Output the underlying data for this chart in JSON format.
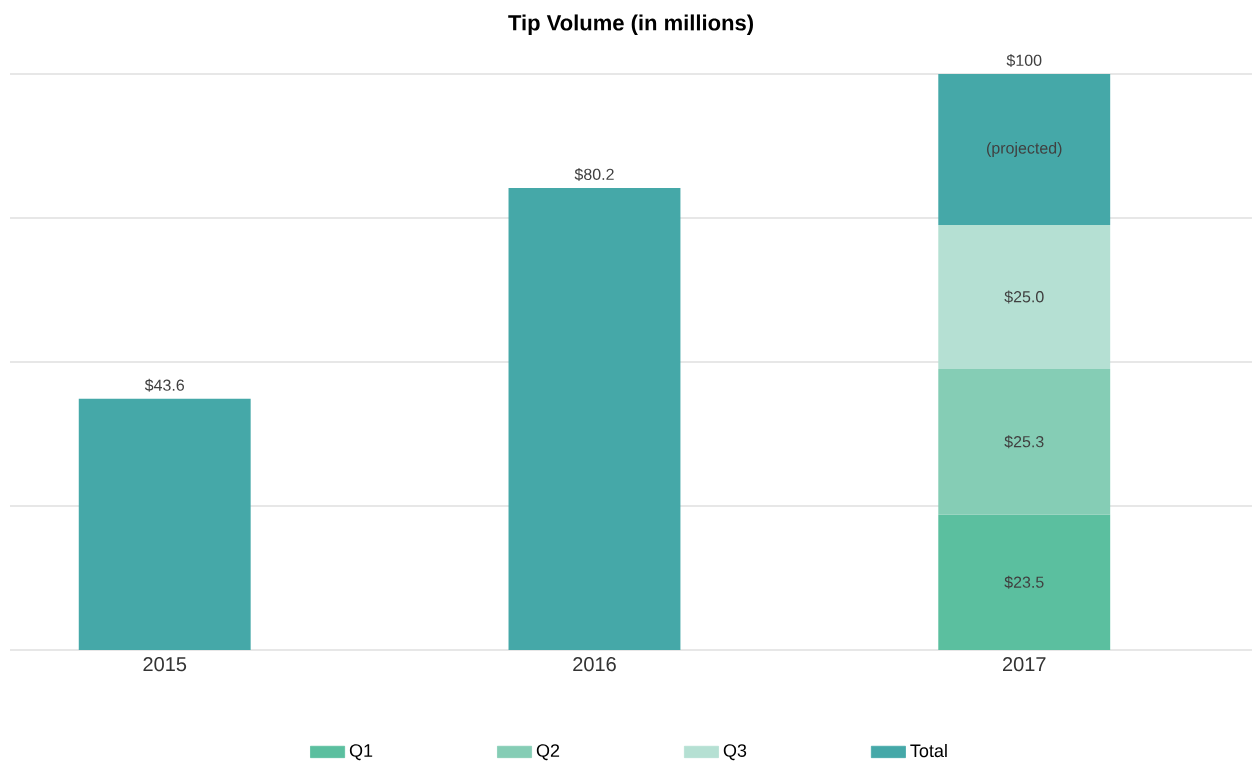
{
  "chart_data": {
    "type": "bar",
    "title": "Tip Volume (in millions)",
    "categories": [
      "2015",
      "2016",
      "2017"
    ],
    "stacked": true,
    "series": [
      {
        "name": "Q1",
        "color": "#5bbf9f",
        "values": [
          null,
          null,
          23.5
        ],
        "value_labels": [
          null,
          null,
          "$23.5"
        ]
      },
      {
        "name": "Q2",
        "color": "#85cdb5",
        "values": [
          null,
          null,
          25.3
        ],
        "value_labels": [
          null,
          null,
          "$25.3"
        ]
      },
      {
        "name": "Q3",
        "color": "#b5e0d3",
        "values": [
          null,
          null,
          25.0
        ],
        "value_labels": [
          null,
          null,
          "$25.0"
        ]
      },
      {
        "name": "Total",
        "color": "#45a8a8",
        "values": [
          43.6,
          80.2,
          26.2
        ],
        "value_labels": [
          null,
          null,
          "(projected)"
        ]
      }
    ],
    "totals": [
      "$43.6",
      "$80.2",
      "$100"
    ],
    "ylim": [
      0,
      100
    ],
    "yticks": [
      {
        "value": 0,
        "label": null
      },
      {
        "value": 25,
        "label": null
      },
      {
        "value": 50,
        "label": null
      },
      {
        "value": 75,
        "label": null
      },
      {
        "value": 100,
        "label": null
      }
    ],
    "grid": "y",
    "legend": "bottom",
    "tick_labels": "x"
  }
}
